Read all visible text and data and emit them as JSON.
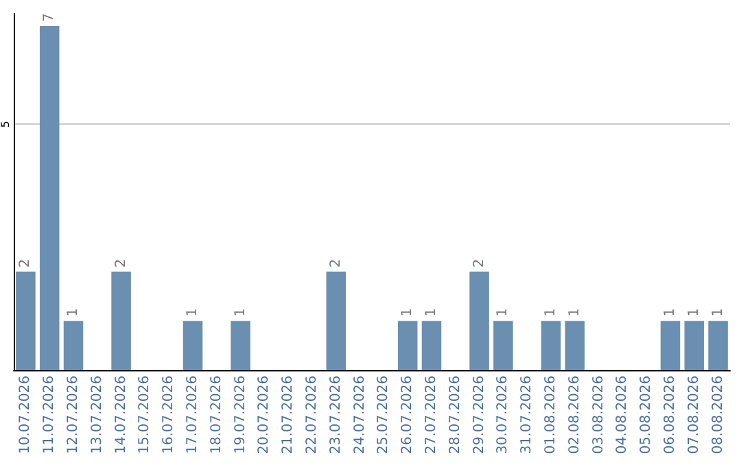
{
  "chart_data": {
    "type": "bar",
    "categories": [
      "10.07.2026",
      "11.07.2026",
      "12.07.2026",
      "13.07.2026",
      "14.07.2026",
      "15.07.2026",
      "16.07.2026",
      "17.07.2026",
      "18.07.2026",
      "19.07.2026",
      "20.07.2026",
      "21.07.2026",
      "22.07.2026",
      "23.07.2026",
      "24.07.2026",
      "25.07.2026",
      "26.07.2026",
      "27.07.2026",
      "28.07.2026",
      "29.07.2026",
      "30.07.2026",
      "31.07.2026",
      "01.08.2026",
      "02.08.2026",
      "03.08.2026",
      "04.08.2026",
      "05.08.2026",
      "06.08.2026",
      "07.08.2026",
      "08.08.2026"
    ],
    "values": [
      2,
      7,
      1,
      0,
      2,
      0,
      0,
      1,
      0,
      1,
      0,
      0,
      0,
      2,
      0,
      0,
      1,
      1,
      0,
      2,
      1,
      0,
      1,
      1,
      0,
      0,
      0,
      1,
      1,
      1
    ],
    "value_labels": [
      "2",
      "7",
      "1",
      null,
      "2",
      null,
      null,
      "1",
      null,
      "1",
      null,
      null,
      null,
      "2",
      null,
      null,
      "1",
      "1",
      null,
      "2",
      "1",
      null,
      "1",
      "1",
      null,
      null,
      null,
      "1",
      "1",
      "1"
    ],
    "color": "#6b8fb0",
    "ylim": [
      0,
      7.25
    ],
    "yticks": [
      5
    ],
    "grid": "y"
  }
}
